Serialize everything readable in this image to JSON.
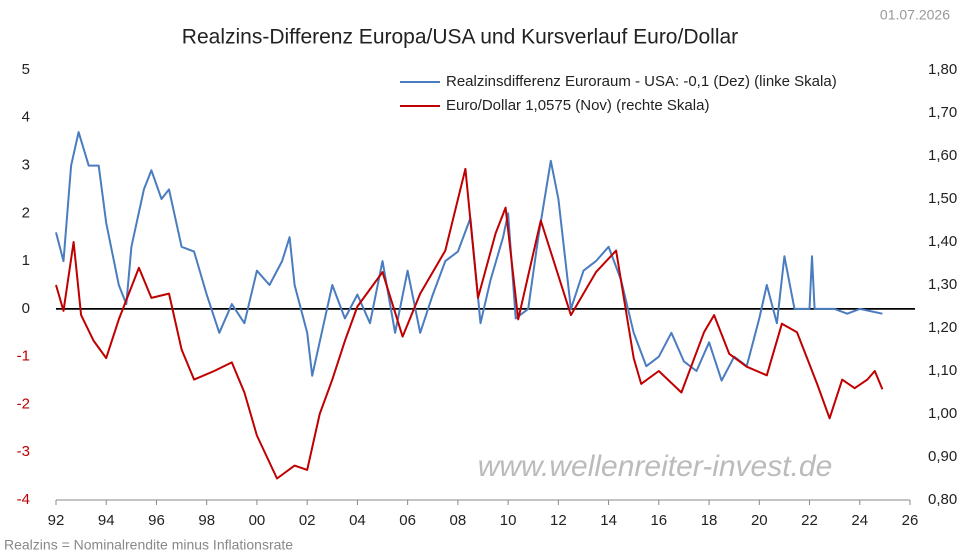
{
  "chart_data": {
    "type": "line",
    "title": "Realzins-Differenz Europa/USA und Kursverlauf Euro/Dollar",
    "date": "01.07.2026",
    "footnote": "Realzins = Nominalrendite minus Inflationsrate",
    "watermark": "www.wellenreiter-invest.de",
    "xlim": [
      1992,
      2026
    ],
    "xticks": [
      {
        "value": 1992,
        "label": "92"
      },
      {
        "value": 1994,
        "label": "94"
      },
      {
        "value": 1996,
        "label": "96"
      },
      {
        "value": 1998,
        "label": "98"
      },
      {
        "value": 2000,
        "label": "00"
      },
      {
        "value": 2002,
        "label": "02"
      },
      {
        "value": 2004,
        "label": "04"
      },
      {
        "value": 2006,
        "label": "06"
      },
      {
        "value": 2008,
        "label": "08"
      },
      {
        "value": 2010,
        "label": "10"
      },
      {
        "value": 2012,
        "label": "12"
      },
      {
        "value": 2014,
        "label": "14"
      },
      {
        "value": 2016,
        "label": "16"
      },
      {
        "value": 2018,
        "label": "18"
      },
      {
        "value": 2020,
        "label": "20"
      },
      {
        "value": 2022,
        "label": "22"
      },
      {
        "value": 2024,
        "label": "24"
      },
      {
        "value": 2026,
        "label": "26"
      }
    ],
    "ylim": [
      -4,
      5
    ],
    "yticks": [
      5,
      4,
      3,
      2,
      1,
      0,
      -1,
      -2,
      -3,
      -4
    ],
    "negative_tick_color": "#c00000",
    "y2lim": [
      0.8,
      1.8
    ],
    "y2ticks": [
      {
        "value": 1.8,
        "label": "1,80"
      },
      {
        "value": 1.7,
        "label": "1,70"
      },
      {
        "value": 1.6,
        "label": "1,60"
      },
      {
        "value": 1.5,
        "label": "1,50"
      },
      {
        "value": 1.4,
        "label": "1,40"
      },
      {
        "value": 1.3,
        "label": "1,30"
      },
      {
        "value": 1.2,
        "label": "1,20"
      },
      {
        "value": 1.1,
        "label": "1,10"
      },
      {
        "value": 1.0,
        "label": "1,00"
      },
      {
        "value": 0.9,
        "label": "0,90"
      },
      {
        "value": 0.8,
        "label": "0,80"
      }
    ],
    "legend": "top-right",
    "series": [
      {
        "name": "Realzinsdifferenz Euroraum - USA: -0,1 (Dez) (linke Skala)",
        "color": "#4a7cc0",
        "axis": "y",
        "x": [
          1992,
          1992.3,
          1992.6,
          1992.9,
          1993.3,
          1993.7,
          1994,
          1994.5,
          1994.8,
          1995,
          1995.5,
          1995.8,
          1996.2,
          1996.5,
          1997,
          1997.5,
          1998,
          1998.5,
          1999,
          1999.5,
          2000,
          2000.5,
          2001,
          2001.3,
          2001.5,
          2002,
          2002.2,
          2003,
          2003.5,
          2004,
          2004.5,
          2005,
          2005.5,
          2006,
          2006.5,
          2007,
          2007.5,
          2008,
          2008.5,
          2008.9,
          2009.3,
          2009.8,
          2010,
          2010.3,
          2010.8,
          2011.2,
          2011.7,
          2012,
          2012.5,
          2013,
          2013.5,
          2014,
          2014.5,
          2015,
          2015.5,
          2016,
          2016.5,
          2017,
          2017.5,
          2018,
          2018.5,
          2019,
          2019.5,
          2020,
          2020.3,
          2020.7,
          2021,
          2021.4,
          2022,
          2022.1,
          2022.2,
          2023,
          2023.5,
          2024,
          2024.9
        ],
        "values": [
          1.6,
          1.0,
          3.0,
          3.7,
          3.0,
          3.0,
          1.8,
          0.5,
          0.1,
          1.3,
          2.5,
          2.9,
          2.3,
          2.5,
          1.3,
          1.2,
          0.3,
          -0.5,
          0.1,
          -0.3,
          0.8,
          0.5,
          1.0,
          1.5,
          0.5,
          -0.5,
          -1.4,
          0.5,
          -0.2,
          0.3,
          -0.3,
          1.0,
          -0.5,
          0.8,
          -0.5,
          0.3,
          1.0,
          1.2,
          1.9,
          -0.3,
          0.6,
          1.5,
          2.0,
          -0.2,
          0.0,
          1.5,
          3.1,
          2.3,
          0.0,
          0.8,
          1.0,
          1.3,
          0.6,
          -0.5,
          -1.2,
          -1.0,
          -0.5,
          -1.1,
          -1.3,
          -0.7,
          -1.5,
          -1.0,
          -1.2,
          -0.2,
          0.5,
          -0.3,
          1.1,
          0.0,
          0.0,
          1.1,
          0.0,
          0.0,
          -0.1,
          0.0,
          -0.1
        ]
      },
      {
        "name": "Euro/Dollar 1,0575 (Nov) (rechte Skala)",
        "color": "#c00000",
        "axis": "y2",
        "x": [
          1992,
          1992.3,
          1992.7,
          1993,
          1993.5,
          1994,
          1994.5,
          1995.3,
          1995.8,
          1996.5,
          1997,
          1997.5,
          1998.3,
          1999,
          1999.5,
          2000,
          2000.8,
          2001.5,
          2002,
          2002.5,
          2003,
          2003.5,
          2004,
          2005,
          2005.8,
          2006.5,
          2007.5,
          2008.3,
          2008.8,
          2009.5,
          2009.9,
          2010.4,
          2011.3,
          2012.5,
          2013.5,
          2014.3,
          2015,
          2015.3,
          2016,
          2016.9,
          2017.8,
          2018.2,
          2018.8,
          2019.5,
          2020.3,
          2020.9,
          2021.5,
          2022.3,
          2022.8,
          2023.3,
          2023.8,
          2024.3,
          2024.6,
          2024.9
        ],
        "values": [
          1.3,
          1.24,
          1.4,
          1.23,
          1.17,
          1.13,
          1.22,
          1.34,
          1.27,
          1.28,
          1.15,
          1.08,
          1.1,
          1.12,
          1.05,
          0.95,
          0.85,
          0.88,
          0.87,
          1.0,
          1.08,
          1.17,
          1.25,
          1.33,
          1.18,
          1.28,
          1.38,
          1.57,
          1.27,
          1.42,
          1.48,
          1.22,
          1.45,
          1.23,
          1.33,
          1.38,
          1.13,
          1.07,
          1.1,
          1.05,
          1.19,
          1.23,
          1.14,
          1.11,
          1.09,
          1.21,
          1.19,
          1.07,
          0.99,
          1.08,
          1.06,
          1.08,
          1.1,
          1.0575
        ]
      }
    ]
  }
}
